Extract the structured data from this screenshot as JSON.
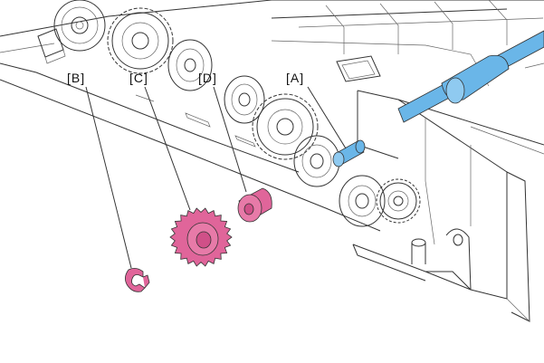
{
  "callouts": {
    "a": "[A]",
    "b": "[B]",
    "c": "[C]",
    "d": "[D]"
  },
  "colors": {
    "highlight_blue": "#6ab6e8",
    "part_pink": "#e0659a",
    "line": "#333333"
  }
}
